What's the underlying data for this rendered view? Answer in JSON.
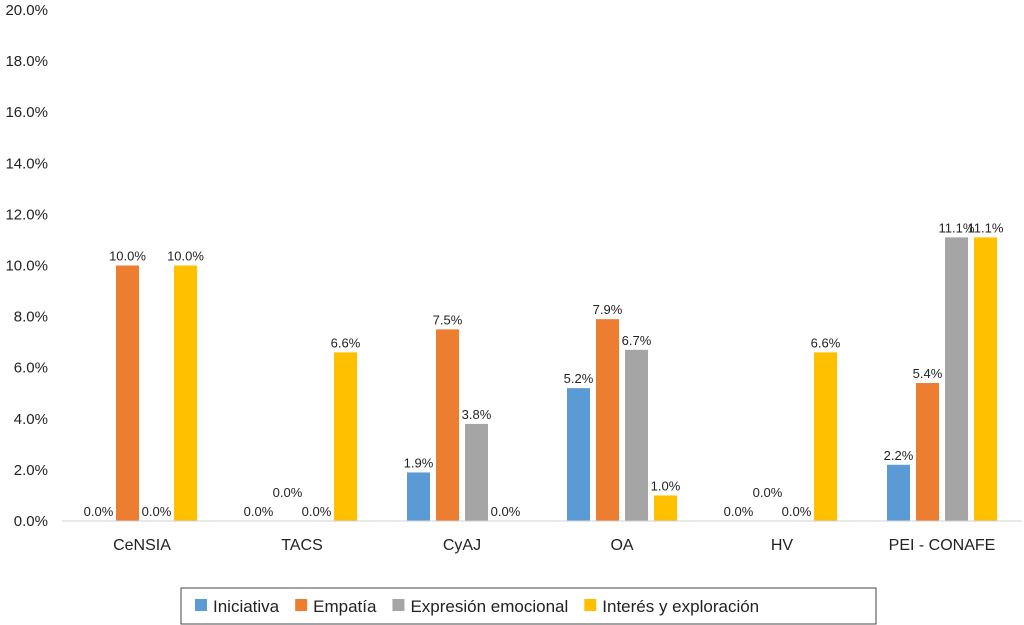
{
  "chart_data": {
    "type": "bar",
    "title": "",
    "xlabel": "",
    "ylabel": "",
    "ylim": [
      0,
      20
    ],
    "ytick_step": 2,
    "y_format": "percent_1dp",
    "grid": false,
    "legend_position": "bottom",
    "categories": [
      "CeNSIA",
      "TACS",
      "CyAJ",
      "OA",
      "HV",
      "PEI - CONAFE"
    ],
    "series": [
      {
        "name": "Iniciativa",
        "color": "#5B9BD5",
        "values": [
          0.0,
          0.0,
          1.9,
          5.2,
          0.0,
          2.2
        ],
        "labels": [
          "0.0%",
          "0.0%",
          "1.9%",
          "5.2%",
          "0.0%",
          "2.2%"
        ]
      },
      {
        "name": "Empatía",
        "color": "#ED7D31",
        "values": [
          10.0,
          0.0,
          7.5,
          7.9,
          0.0,
          5.4
        ],
        "labels": [
          "10.0%",
          "0.0%",
          "7.5%",
          "7.9%",
          "0.0%",
          "5.4%"
        ]
      },
      {
        "name": "Expresión emocional",
        "color": "#A5A5A5",
        "values": [
          0.0,
          0.0,
          3.8,
          6.7,
          0.0,
          11.1
        ],
        "labels": [
          "0.0%",
          "0.0%",
          "3.8%",
          "6.7%",
          "0.0%",
          "11.1%"
        ]
      },
      {
        "name": "Interés y exploración",
        "color": "#FFC000",
        "values": [
          10.0,
          6.6,
          0.0,
          1.0,
          6.6,
          11.1
        ],
        "labels": [
          "10.0%",
          "6.6%",
          "0.0%",
          "1.0%",
          "6.6%",
          "11.1%"
        ]
      }
    ],
    "yticks": [
      "0.0%",
      "2.0%",
      "4.0%",
      "6.0%",
      "8.0%",
      "10.0%",
      "12.0%",
      "14.0%",
      "16.0%",
      "18.0%",
      "20.0%"
    ]
  }
}
